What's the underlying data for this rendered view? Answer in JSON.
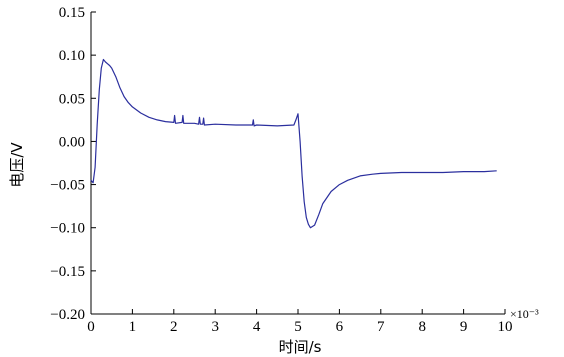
{
  "chart_data": {
    "type": "line",
    "title": "",
    "xlabel": "时间/s",
    "ylabel": "电压/V",
    "x_scale_label": "×10⁻³",
    "xlim": [
      0,
      10
    ],
    "ylim": [
      -0.2,
      0.15
    ],
    "x_ticks": [
      0,
      1,
      2,
      3,
      4,
      5,
      6,
      7,
      8,
      9,
      10
    ],
    "x_tick_labels": [
      "0",
      "1",
      "2",
      "3",
      "4",
      "5",
      "6",
      "7",
      "8",
      "9",
      "10"
    ],
    "y_ticks": [
      0.15,
      0.1,
      0.05,
      0.0,
      -0.05,
      -0.1,
      -0.15,
      -0.2
    ],
    "y_tick_labels": [
      "0.15",
      "0.10",
      "0.05",
      "0.00",
      "−0.05",
      "−0.10",
      "−0.15",
      "−0.20"
    ],
    "grid": false,
    "color": "#2b2f9e",
    "series": [
      {
        "x": [
          0.0,
          0.05,
          0.1,
          0.15,
          0.2,
          0.25,
          0.3,
          0.35,
          0.4,
          0.45,
          0.5,
          0.6,
          0.7,
          0.8,
          0.9,
          1.0,
          1.2,
          1.4,
          1.6,
          1.8,
          2.0,
          2.02,
          2.04,
          2.2,
          2.22,
          2.24,
          2.5,
          2.6,
          2.62,
          2.64,
          2.7,
          2.72,
          2.74,
          3.0,
          3.5,
          3.9,
          3.92,
          3.94,
          4.0,
          4.5,
          4.9,
          4.95,
          5.0,
          5.05,
          5.1,
          5.15,
          5.2,
          5.25,
          5.3,
          5.4,
          5.5,
          5.6,
          5.8,
          6.0,
          6.2,
          6.5,
          6.8,
          7.0,
          7.5,
          8.0,
          8.5,
          9.0,
          9.5,
          9.8
        ],
        "y": [
          -0.045,
          -0.048,
          -0.03,
          0.02,
          0.06,
          0.085,
          0.095,
          0.092,
          0.09,
          0.088,
          0.085,
          0.075,
          0.062,
          0.052,
          0.045,
          0.04,
          0.033,
          0.028,
          0.025,
          0.023,
          0.022,
          0.03,
          0.021,
          0.022,
          0.03,
          0.021,
          0.021,
          0.02,
          0.028,
          0.02,
          0.02,
          0.027,
          0.019,
          0.02,
          0.019,
          0.019,
          0.025,
          0.018,
          0.019,
          0.018,
          0.019,
          0.025,
          0.032,
          0.0,
          -0.04,
          -0.07,
          -0.088,
          -0.096,
          -0.1,
          -0.097,
          -0.085,
          -0.072,
          -0.058,
          -0.05,
          -0.045,
          -0.04,
          -0.038,
          -0.037,
          -0.036,
          -0.036,
          -0.036,
          -0.035,
          -0.035,
          -0.034
        ]
      }
    ]
  }
}
